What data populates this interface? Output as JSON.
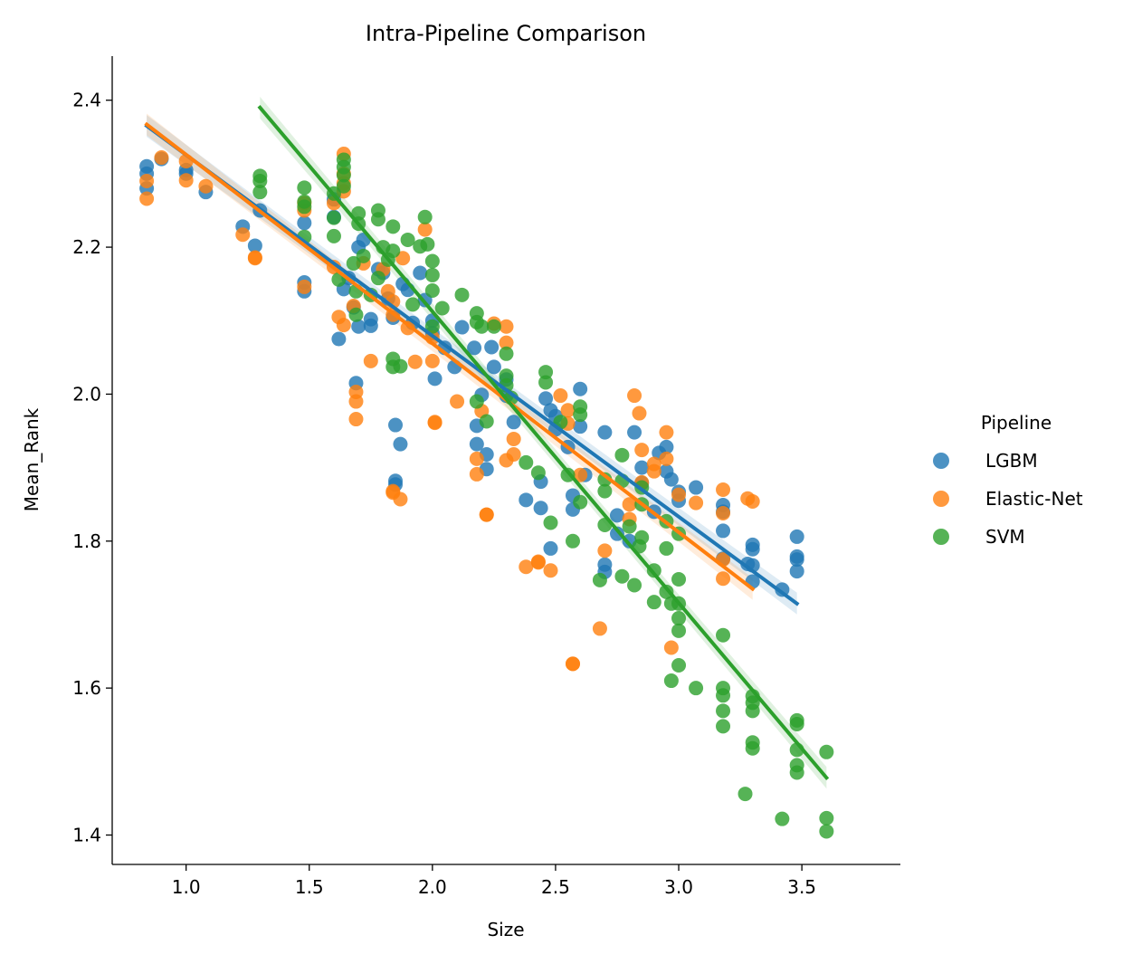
{
  "chart_data": {
    "type": "scatter",
    "title": "Intra-Pipeline Comparison",
    "xlabel": "Size",
    "ylabel": "Mean_Rank",
    "xlim": [
      0.7,
      3.9
    ],
    "ylim": [
      1.36,
      2.46
    ],
    "xticks": [
      1.0,
      1.5,
      2.0,
      2.5,
      3.0,
      3.5
    ],
    "yticks": [
      1.4,
      1.6,
      1.8,
      2.0,
      2.2,
      2.4
    ],
    "xtick_labels": [
      "1.0",
      "1.5",
      "2.0",
      "2.5",
      "3.0",
      "3.5"
    ],
    "ytick_labels": [
      "1.4",
      "1.6",
      "1.8",
      "2.0",
      "2.2",
      "2.4"
    ],
    "grid": false,
    "legend": {
      "title": "Pipeline",
      "placement": "right"
    },
    "series": [
      {
        "name": "LGBM",
        "color": "#1f77b4",
        "regression": {
          "x": [
            0.84,
            3.48
          ],
          "y": [
            2.365,
            1.715
          ]
        },
        "points": [
          [
            0.84,
            2.31
          ],
          [
            0.84,
            2.3
          ],
          [
            0.84,
            2.28
          ],
          [
            0.9,
            2.32
          ],
          [
            1.0,
            2.3
          ],
          [
            1.0,
            2.305
          ],
          [
            1.08,
            2.275
          ],
          [
            1.23,
            2.228
          ],
          [
            1.28,
            2.202
          ],
          [
            1.3,
            2.25
          ],
          [
            1.48,
            2.152
          ],
          [
            1.48,
            2.14
          ],
          [
            1.48,
            2.233
          ],
          [
            1.6,
            2.241
          ],
          [
            1.6,
            2.265
          ],
          [
            1.62,
            2.075
          ],
          [
            1.64,
            2.143
          ],
          [
            1.66,
            2.158
          ],
          [
            1.68,
            2.118
          ],
          [
            1.69,
            2.015
          ],
          [
            1.7,
            2.092
          ],
          [
            1.7,
            2.2
          ],
          [
            1.72,
            2.21
          ],
          [
            1.75,
            2.102
          ],
          [
            1.75,
            2.093
          ],
          [
            1.78,
            2.17
          ],
          [
            1.8,
            2.165
          ],
          [
            1.82,
            2.13
          ],
          [
            1.84,
            2.104
          ],
          [
            1.85,
            1.958
          ],
          [
            1.85,
            1.882
          ],
          [
            1.85,
            1.877
          ],
          [
            1.87,
            1.932
          ],
          [
            1.88,
            2.15
          ],
          [
            1.9,
            2.142
          ],
          [
            1.92,
            2.097
          ],
          [
            1.95,
            2.165
          ],
          [
            1.97,
            2.128
          ],
          [
            2.0,
            2.1
          ],
          [
            2.0,
            2.083
          ],
          [
            2.01,
            2.021
          ],
          [
            2.05,
            2.063
          ],
          [
            2.09,
            2.037
          ],
          [
            2.12,
            2.091
          ],
          [
            2.17,
            2.063
          ],
          [
            2.18,
            1.957
          ],
          [
            2.18,
            1.932
          ],
          [
            2.2,
            1.999
          ],
          [
            2.22,
            1.918
          ],
          [
            2.22,
            1.898
          ],
          [
            2.24,
            2.064
          ],
          [
            2.25,
            2.037
          ],
          [
            2.3,
            2.02
          ],
          [
            2.3,
            1.998
          ],
          [
            2.33,
            1.962
          ],
          [
            2.38,
            1.856
          ],
          [
            2.44,
            1.845
          ],
          [
            2.44,
            1.881
          ],
          [
            2.46,
            1.994
          ],
          [
            2.48,
            1.978
          ],
          [
            2.48,
            1.79
          ],
          [
            2.5,
            1.97
          ],
          [
            2.5,
            1.952
          ],
          [
            2.55,
            1.928
          ],
          [
            2.57,
            1.862
          ],
          [
            2.57,
            1.843
          ],
          [
            2.6,
            2.007
          ],
          [
            2.6,
            1.956
          ],
          [
            2.62,
            1.89
          ],
          [
            2.7,
            1.948
          ],
          [
            2.7,
            1.768
          ],
          [
            2.7,
            1.758
          ],
          [
            2.75,
            1.835
          ],
          [
            2.75,
            1.81
          ],
          [
            2.8,
            1.8
          ],
          [
            2.82,
            1.948
          ],
          [
            2.85,
            1.9
          ],
          [
            2.85,
            1.879
          ],
          [
            2.9,
            1.84
          ],
          [
            2.92,
            1.92
          ],
          [
            2.95,
            1.928
          ],
          [
            2.95,
            1.895
          ],
          [
            2.97,
            1.884
          ],
          [
            3.0,
            1.867
          ],
          [
            3.0,
            1.855
          ],
          [
            3.07,
            1.873
          ],
          [
            3.18,
            1.849
          ],
          [
            3.18,
            1.84
          ],
          [
            3.18,
            1.814
          ],
          [
            3.18,
            1.776
          ],
          [
            3.28,
            1.769
          ],
          [
            3.3,
            1.795
          ],
          [
            3.3,
            1.789
          ],
          [
            3.3,
            1.767
          ],
          [
            3.3,
            1.745
          ],
          [
            3.42,
            1.734
          ],
          [
            3.48,
            1.806
          ],
          [
            3.48,
            1.779
          ],
          [
            3.48,
            1.775
          ],
          [
            3.48,
            1.759
          ]
        ]
      },
      {
        "name": "Elastic-Net",
        "color": "#ff7f0e",
        "regression": {
          "x": [
            0.84,
            3.3
          ],
          "y": [
            2.367,
            1.735
          ]
        },
        "points": [
          [
            0.84,
            2.266
          ],
          [
            0.84,
            2.29
          ],
          [
            0.9,
            2.322
          ],
          [
            1.0,
            2.317
          ],
          [
            1.0,
            2.291
          ],
          [
            1.08,
            2.283
          ],
          [
            1.23,
            2.217
          ],
          [
            1.28,
            2.186
          ],
          [
            1.28,
            2.185
          ],
          [
            1.48,
            2.146
          ],
          [
            1.48,
            2.25
          ],
          [
            1.48,
            2.26
          ],
          [
            1.6,
            2.173
          ],
          [
            1.6,
            2.26
          ],
          [
            1.62,
            2.105
          ],
          [
            1.64,
            2.094
          ],
          [
            1.64,
            2.327
          ],
          [
            1.64,
            2.3
          ],
          [
            1.64,
            2.287
          ],
          [
            1.64,
            2.276
          ],
          [
            1.68,
            2.12
          ],
          [
            1.69,
            2.003
          ],
          [
            1.69,
            1.99
          ],
          [
            1.69,
            1.966
          ],
          [
            1.72,
            2.178
          ],
          [
            1.75,
            2.045
          ],
          [
            1.8,
            2.17
          ],
          [
            1.82,
            2.14
          ],
          [
            1.84,
            2.126
          ],
          [
            1.84,
            2.108
          ],
          [
            1.84,
            1.868
          ],
          [
            1.84,
            1.866
          ],
          [
            1.87,
            1.857
          ],
          [
            1.88,
            2.185
          ],
          [
            1.9,
            2.09
          ],
          [
            1.93,
            2.044
          ],
          [
            1.97,
            2.224
          ],
          [
            2.0,
            2.077
          ],
          [
            2.0,
            2.045
          ],
          [
            2.01,
            1.962
          ],
          [
            2.01,
            1.961
          ],
          [
            2.1,
            1.99
          ],
          [
            2.18,
            1.912
          ],
          [
            2.18,
            1.891
          ],
          [
            2.2,
            1.977
          ],
          [
            2.22,
            1.836
          ],
          [
            2.22,
            1.836
          ],
          [
            2.25,
            2.096
          ],
          [
            2.3,
            2.092
          ],
          [
            2.3,
            2.07
          ],
          [
            2.3,
            1.91
          ],
          [
            2.33,
            1.918
          ],
          [
            2.33,
            1.939
          ],
          [
            2.38,
            1.765
          ],
          [
            2.43,
            1.772
          ],
          [
            2.43,
            1.771
          ],
          [
            2.48,
            1.76
          ],
          [
            2.52,
            1.998
          ],
          [
            2.55,
            1.978
          ],
          [
            2.55,
            1.96
          ],
          [
            2.57,
            1.633
          ],
          [
            2.57,
            1.633
          ],
          [
            2.6,
            1.89
          ],
          [
            2.68,
            1.681
          ],
          [
            2.7,
            1.787
          ],
          [
            2.8,
            1.85
          ],
          [
            2.8,
            1.83
          ],
          [
            2.82,
            1.998
          ],
          [
            2.84,
            1.974
          ],
          [
            2.85,
            1.924
          ],
          [
            2.85,
            1.88
          ],
          [
            2.9,
            1.905
          ],
          [
            2.9,
            1.895
          ],
          [
            2.95,
            1.948
          ],
          [
            2.95,
            1.912
          ],
          [
            2.97,
            1.655
          ],
          [
            3.0,
            1.863
          ],
          [
            3.07,
            1.852
          ],
          [
            3.18,
            1.87
          ],
          [
            3.18,
            1.838
          ],
          [
            3.18,
            1.775
          ],
          [
            3.18,
            1.749
          ],
          [
            3.28,
            1.858
          ],
          [
            3.3,
            1.854
          ]
        ]
      },
      {
        "name": "SVM",
        "color": "#2ca02c",
        "regression": {
          "x": [
            1.3,
            3.6
          ],
          "y": [
            2.39,
            1.478
          ]
        },
        "points": [
          [
            1.3,
            2.297
          ],
          [
            1.3,
            2.29
          ],
          [
            1.3,
            2.275
          ],
          [
            1.48,
            2.281
          ],
          [
            1.48,
            2.262
          ],
          [
            1.48,
            2.255
          ],
          [
            1.48,
            2.214
          ],
          [
            1.6,
            2.273
          ],
          [
            1.6,
            2.24
          ],
          [
            1.6,
            2.215
          ],
          [
            1.62,
            2.156
          ],
          [
            1.64,
            2.319
          ],
          [
            1.64,
            2.309
          ],
          [
            1.64,
            2.298
          ],
          [
            1.64,
            2.283
          ],
          [
            1.68,
            2.178
          ],
          [
            1.69,
            2.14
          ],
          [
            1.69,
            2.108
          ],
          [
            1.7,
            2.246
          ],
          [
            1.7,
            2.232
          ],
          [
            1.72,
            2.188
          ],
          [
            1.75,
            2.135
          ],
          [
            1.78,
            2.25
          ],
          [
            1.78,
            2.238
          ],
          [
            1.78,
            2.158
          ],
          [
            1.8,
            2.2
          ],
          [
            1.82,
            2.183
          ],
          [
            1.84,
            2.228
          ],
          [
            1.84,
            2.195
          ],
          [
            1.84,
            2.048
          ],
          [
            1.84,
            2.037
          ],
          [
            1.87,
            2.038
          ],
          [
            1.9,
            2.21
          ],
          [
            1.92,
            2.122
          ],
          [
            1.95,
            2.201
          ],
          [
            1.97,
            2.241
          ],
          [
            1.98,
            2.204
          ],
          [
            2.0,
            2.181
          ],
          [
            2.0,
            2.162
          ],
          [
            2.0,
            2.141
          ],
          [
            2.0,
            2.092
          ],
          [
            2.04,
            2.117
          ],
          [
            2.12,
            2.135
          ],
          [
            2.18,
            2.11
          ],
          [
            2.18,
            2.098
          ],
          [
            2.18,
            1.99
          ],
          [
            2.2,
            2.092
          ],
          [
            2.22,
            1.963
          ],
          [
            2.25,
            2.092
          ],
          [
            2.3,
            2.055
          ],
          [
            2.3,
            2.025
          ],
          [
            2.3,
            2.012
          ],
          [
            2.32,
            1.995
          ],
          [
            2.38,
            1.907
          ],
          [
            2.43,
            1.893
          ],
          [
            2.46,
            2.03
          ],
          [
            2.46,
            2.016
          ],
          [
            2.48,
            1.825
          ],
          [
            2.52,
            1.962
          ],
          [
            2.55,
            1.89
          ],
          [
            2.57,
            1.8
          ],
          [
            2.6,
            1.983
          ],
          [
            2.6,
            1.972
          ],
          [
            2.6,
            1.853
          ],
          [
            2.68,
            1.747
          ],
          [
            2.7,
            1.884
          ],
          [
            2.7,
            1.868
          ],
          [
            2.7,
            1.822
          ],
          [
            2.77,
            1.917
          ],
          [
            2.77,
            1.882
          ],
          [
            2.77,
            1.752
          ],
          [
            2.8,
            1.82
          ],
          [
            2.82,
            1.74
          ],
          [
            2.84,
            1.793
          ],
          [
            2.85,
            1.873
          ],
          [
            2.85,
            1.85
          ],
          [
            2.85,
            1.805
          ],
          [
            2.9,
            1.76
          ],
          [
            2.9,
            1.717
          ],
          [
            2.95,
            1.827
          ],
          [
            2.95,
            1.79
          ],
          [
            2.95,
            1.731
          ],
          [
            2.97,
            1.715
          ],
          [
            2.97,
            1.61
          ],
          [
            3.0,
            1.81
          ],
          [
            3.0,
            1.748
          ],
          [
            3.0,
            1.715
          ],
          [
            3.0,
            1.695
          ],
          [
            3.0,
            1.678
          ],
          [
            3.0,
            1.631
          ],
          [
            3.07,
            1.6
          ],
          [
            3.18,
            1.672
          ],
          [
            3.18,
            1.6
          ],
          [
            3.18,
            1.59
          ],
          [
            3.18,
            1.569
          ],
          [
            3.18,
            1.548
          ],
          [
            3.27,
            1.456
          ],
          [
            3.3,
            1.589
          ],
          [
            3.3,
            1.58
          ],
          [
            3.3,
            1.569
          ],
          [
            3.3,
            1.526
          ],
          [
            3.3,
            1.518
          ],
          [
            3.42,
            1.422
          ],
          [
            3.48,
            1.556
          ],
          [
            3.48,
            1.551
          ],
          [
            3.48,
            1.516
          ],
          [
            3.48,
            1.495
          ],
          [
            3.48,
            1.485
          ],
          [
            3.6,
            1.513
          ],
          [
            3.6,
            1.423
          ],
          [
            3.6,
            1.405
          ]
        ]
      }
    ]
  }
}
